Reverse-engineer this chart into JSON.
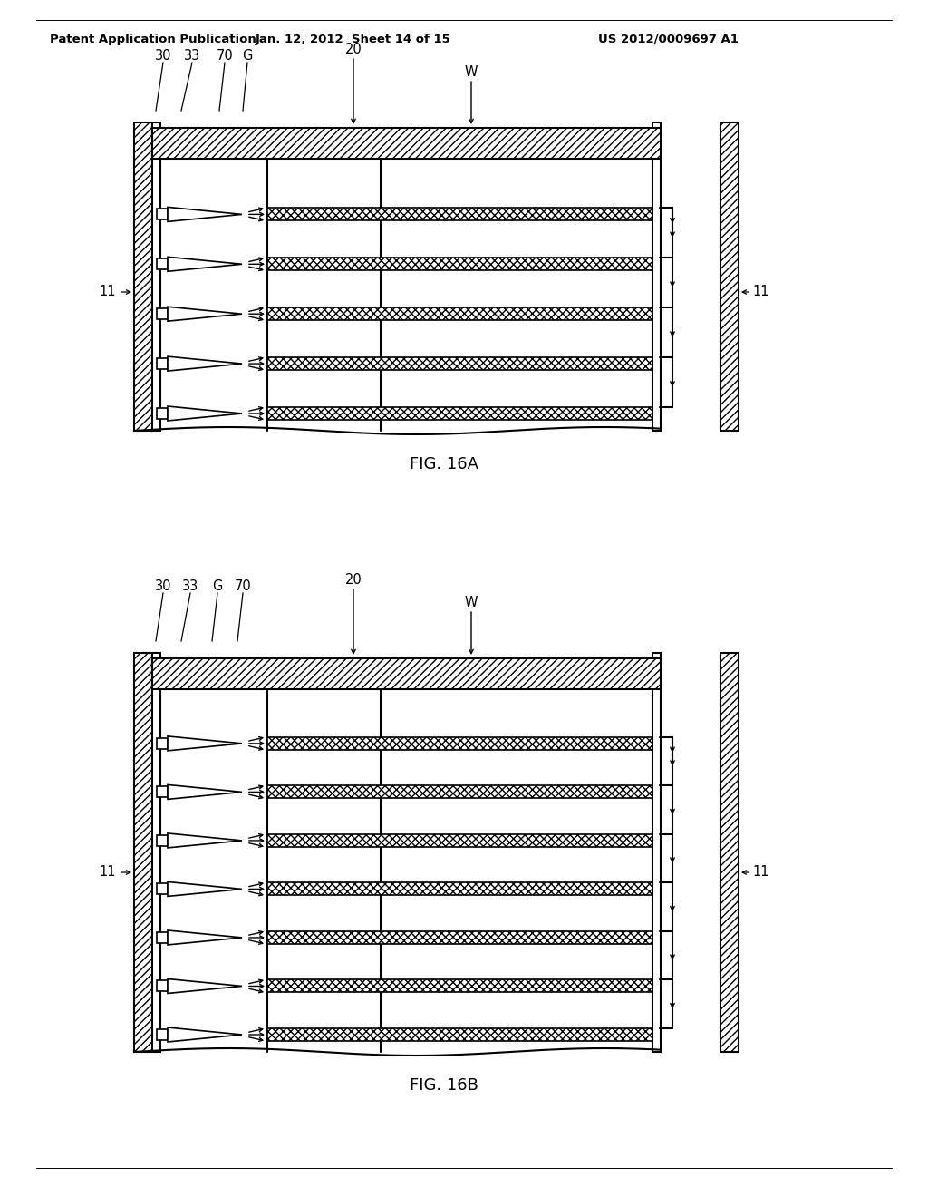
{
  "header_left": "Patent Application Publication",
  "header_mid": "Jan. 12, 2012  Sheet 14 of 15",
  "header_right": "US 2012/0009697 A1",
  "fig_label_a": "FIG. 16A",
  "fig_label_b": "FIG. 16B",
  "bg_color": "#ffffff",
  "line_color": "#000000"
}
